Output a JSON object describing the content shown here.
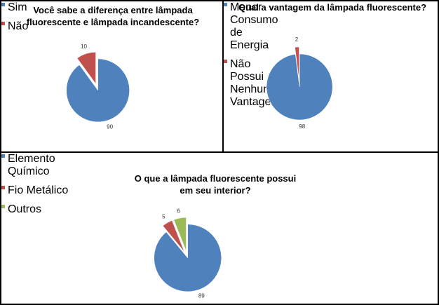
{
  "chart_data": [
    {
      "type": "pie",
      "title": "Você sabe a diferença entre lâmpada fluorescente e lâmpada  incandescente?",
      "categories": [
        "Sim",
        "Não"
      ],
      "values": [
        90,
        10
      ],
      "colors": [
        "#4f81bd",
        "#c0504d"
      ]
    },
    {
      "type": "pie",
      "title": "Qual a vantagem da lâmpada fluorescente?",
      "categories": [
        "Menor Consumo de Energia",
        "Não Possui Nenhuma Vantagem"
      ],
      "values": [
        98,
        2
      ],
      "colors": [
        "#4f81bd",
        "#c0504d"
      ]
    },
    {
      "type": "pie",
      "title": "O que a lâmpada fluorescente possui em seu interior?",
      "categories": [
        "Elemento Químico",
        "Fio Metálico",
        "Outros"
      ],
      "values": [
        89,
        5,
        6
      ],
      "colors": [
        "#4f81bd",
        "#c0504d",
        "#9bbb59"
      ]
    }
  ]
}
